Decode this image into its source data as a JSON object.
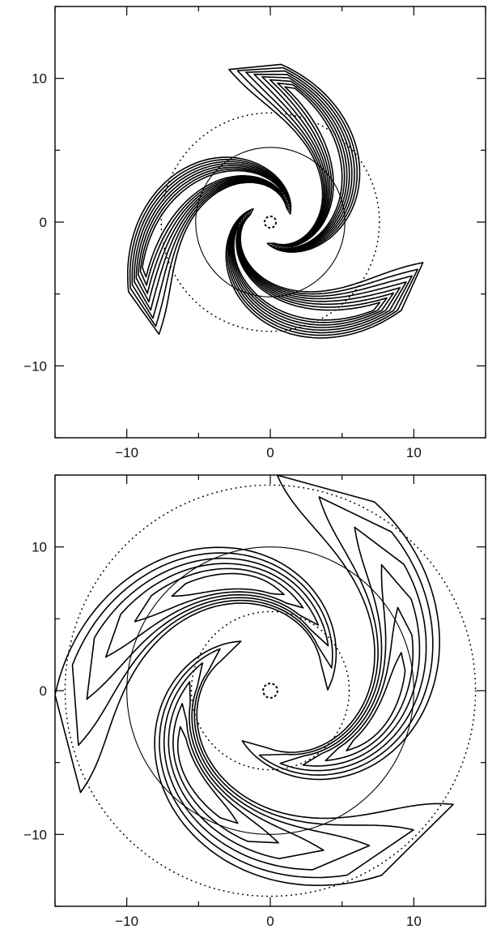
{
  "chart_data": [
    {
      "type": "contour",
      "title": "",
      "xlabel": "",
      "ylabel": "",
      "xlim": [
        -15,
        15
      ],
      "ylim": [
        -15,
        15
      ],
      "xticks": [
        -10,
        0,
        10
      ],
      "yticks": [
        -10,
        0,
        10
      ],
      "xtick_labels": [
        "−10",
        "0",
        "10"
      ],
      "ytick_labels": [
        "−10",
        "0",
        "10"
      ],
      "show_xtick_labels": true,
      "grid": false,
      "arms": 3,
      "arm_extent": [
        1.5,
        11
      ],
      "contour_levels": 8,
      "circles": [
        {
          "style": "solid",
          "radius": 5.2
        },
        {
          "style": "dotted",
          "radius": 7.6
        }
      ],
      "core_dashed_radius": 0.4
    },
    {
      "type": "contour",
      "title": "",
      "xlabel": "",
      "ylabel": "",
      "xlim": [
        -15,
        15
      ],
      "ylim": [
        -15,
        15
      ],
      "xticks": [
        -10,
        0,
        10
      ],
      "yticks": [
        -10,
        0,
        10
      ],
      "xtick_labels": [
        "−10",
        "0",
        "10"
      ],
      "ytick_labels": [
        "−10",
        "0",
        "10"
      ],
      "show_xtick_labels": true,
      "grid": false,
      "arms": 3,
      "arm_extent": [
        4,
        15
      ],
      "contour_levels": 6,
      "circles": [
        {
          "style": "solid",
          "radius": 10.0
        },
        {
          "style": "dotted",
          "radius": 5.5
        },
        {
          "style": "dotted",
          "radius": 14.3
        }
      ],
      "core_dashed_radius": 0.5
    }
  ]
}
